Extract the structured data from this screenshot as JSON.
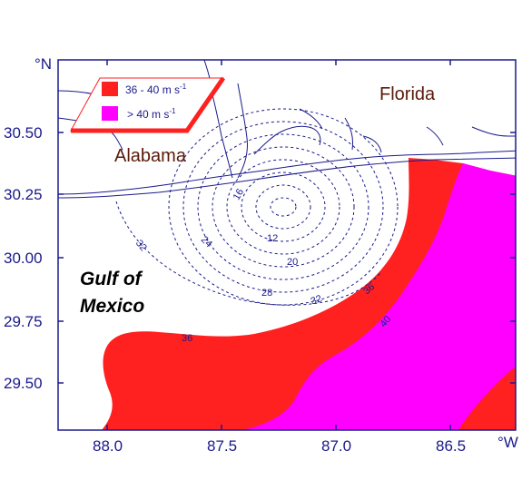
{
  "map": {
    "frame": {
      "lon_range": [
        88.22,
        86.22
      ],
      "lat_range": [
        29.33,
        30.83
      ],
      "x_ticks": [
        88.0,
        87.5,
        87.0,
        86.5
      ],
      "y_ticks": [
        29.5,
        29.75,
        30.0,
        30.25,
        30.5
      ],
      "x_tick_labels": [
        "88.0",
        "87.5",
        "87.0",
        "86.5"
      ],
      "y_tick_labels": [
        "29.50",
        "29.75",
        "30.00",
        "30.25",
        "30.50"
      ],
      "x_unit": "°W",
      "y_unit": "°N"
    },
    "labels": {
      "florida": "Florida",
      "alabama": "Alabama",
      "gulf_line1": "Gulf of",
      "gulf_line2": "Mexico"
    },
    "legend": {
      "item1_label": "36 - 40 m s",
      "item1_sup": "-1",
      "item1_color": "#ff2020",
      "item2_label": "> 40 m s",
      "item2_sup": "-1",
      "item2_color": "#ff00ff"
    },
    "contour_labels": [
      "12",
      "16",
      "20",
      "24",
      "28",
      "32",
      "32",
      "36",
      "36",
      "40"
    ],
    "colors": {
      "axis": "#1a1a8c",
      "red_zone": "#ff2020",
      "magenta_zone": "#ff00ff",
      "state_label": "#5a1a0a"
    }
  }
}
